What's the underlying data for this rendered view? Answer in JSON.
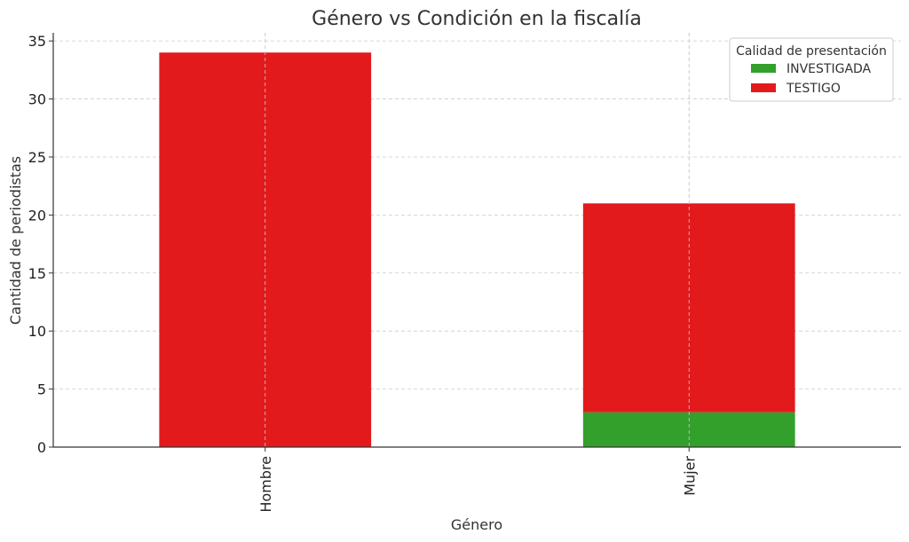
{
  "chart_data": {
    "type": "bar",
    "stacked": true,
    "title": "Género vs Condición en la fiscalía",
    "xlabel": "Género",
    "ylabel": "Cantidad de periodistas",
    "categories": [
      "Hombre",
      "Mujer"
    ],
    "series": [
      {
        "name": "INVESTIGADA",
        "values": [
          0,
          3
        ],
        "color": "#33a02c"
      },
      {
        "name": "TESTIGO",
        "values": [
          34,
          18
        ],
        "color": "#e31a1c"
      }
    ],
    "ylim": [
      0,
      35.7
    ],
    "yticks": [
      0,
      5,
      10,
      15,
      20,
      25,
      30,
      35
    ],
    "grid": true,
    "legend": {
      "title": "Calidad de presentación",
      "placement": "top-right"
    }
  }
}
